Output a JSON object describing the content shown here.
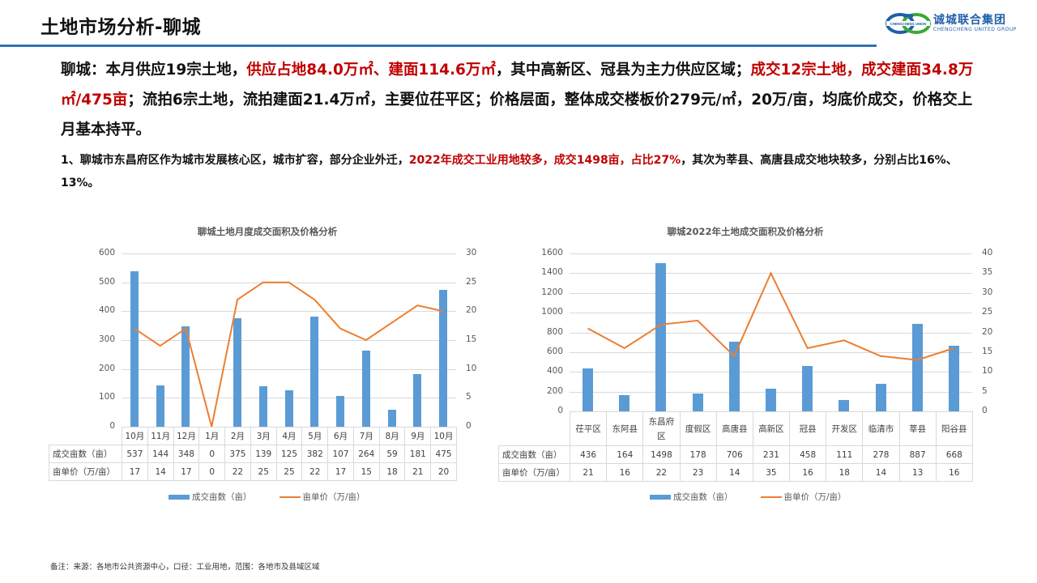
{
  "header": {
    "title": "土地市场分析-聊城",
    "logo": {
      "name_cn": "诚城联合集团",
      "name_en": "CHENGCHENG UNITED GROUP",
      "mark_text": "CHENGCHENG UNION"
    }
  },
  "summary": {
    "segments": [
      {
        "text": "聊城：本月供应19宗土地，",
        "red": false
      },
      {
        "text": "供应占地84.0万㎡、建面114.6万㎡",
        "red": true
      },
      {
        "text": "，其中高新区、冠县为主力供应区域；",
        "red": false
      },
      {
        "text": "成交12宗土地，成交建面34.8万㎡/475亩",
        "red": true
      },
      {
        "text": "；流拍6宗土地，流拍建面21.4万㎡，主要位茌平区；价格层面，整体成交楼板价279元/㎡，20万/亩，均底价成交，价格交上月基本持平。",
        "red": false
      }
    ]
  },
  "note": {
    "segments": [
      {
        "text": "1、聊城市东昌府区作为城市发展核心区，城市扩容，部分企业外迁，",
        "red": false
      },
      {
        "text": "2022年成交工业用地较多，成交1498亩，占比27%",
        "red": true
      },
      {
        "text": "，其次为莘县、高唐县成交地块较多，分别占比16%、13%。",
        "red": false
      }
    ]
  },
  "colors": {
    "bar": "#5b9bd5",
    "line": "#ed7d31",
    "accent_red": "#c00000",
    "rule_blue": "#2e75b6"
  },
  "chart_data": [
    {
      "type": "bar",
      "combo_line": true,
      "title": "聊城土地月度成交面积及价格分析",
      "categories": [
        "10月",
        "11月",
        "12月",
        "1月",
        "2月",
        "3月",
        "4月",
        "5月",
        "6月",
        "7月",
        "8月",
        "9月",
        "10月"
      ],
      "series": [
        {
          "name": "成交亩数（亩）",
          "type": "bar",
          "axis": "left",
          "values": [
            537,
            144,
            348,
            0,
            375,
            139,
            125,
            382,
            107,
            264,
            59,
            181,
            475
          ]
        },
        {
          "name": "亩单价（万/亩）",
          "type": "line",
          "axis": "right",
          "values": [
            17,
            14,
            17,
            0,
            22,
            25,
            25,
            22,
            17,
            15,
            18,
            21,
            20
          ]
        }
      ],
      "ylim": [
        0,
        600
      ],
      "y_ticks": [
        0,
        100,
        200,
        300,
        400,
        500,
        600
      ],
      "y2lim": [
        0,
        30
      ],
      "y2_ticks": [
        0,
        5,
        10,
        15,
        20,
        25,
        30
      ],
      "grid": true,
      "legend_position": "bottom",
      "data_table": true
    },
    {
      "type": "bar",
      "combo_line": true,
      "title": "聊城2022年土地成交面积及价格分析",
      "categories": [
        "茌平区",
        "东阿县",
        "东昌府区",
        "度假区",
        "高唐县",
        "高新区",
        "冠县",
        "开发区",
        "临清市",
        "莘县",
        "阳谷县"
      ],
      "series": [
        {
          "name": "成交亩数（亩）",
          "type": "bar",
          "axis": "left",
          "values": [
            436,
            164,
            1498,
            178,
            706,
            231,
            458,
            111,
            278,
            887,
            668
          ]
        },
        {
          "name": "亩单价（万/亩）",
          "type": "line",
          "axis": "right",
          "values": [
            21,
            16,
            22,
            23,
            14,
            35,
            16,
            18,
            14,
            13,
            16
          ]
        }
      ],
      "ylim": [
        0,
        1600
      ],
      "y_ticks": [
        0,
        200,
        400,
        600,
        800,
        1000,
        1200,
        1400,
        1600
      ],
      "y2lim": [
        0,
        40
      ],
      "y2_ticks": [
        0,
        5,
        10,
        15,
        20,
        25,
        30,
        35,
        40
      ],
      "grid": true,
      "legend_position": "bottom",
      "data_table": true
    }
  ],
  "footnote": "备注：来源：各地市公共资源中心，口径：工业用地，范围：各地市及县域区域"
}
